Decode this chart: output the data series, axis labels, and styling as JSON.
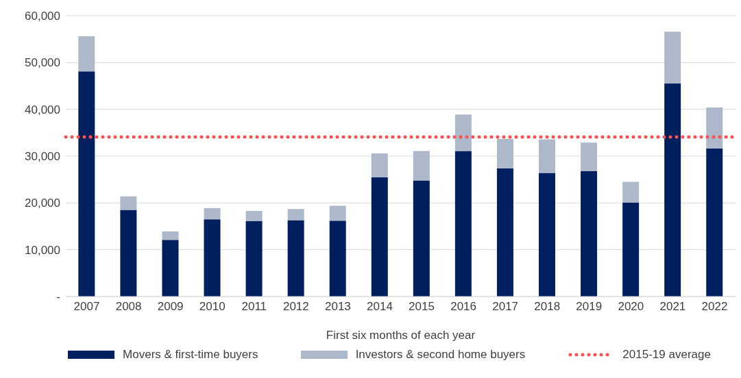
{
  "chart_data": {
    "type": "bar",
    "stacked": true,
    "xlabel": "First six months of each year",
    "categories": [
      "2007",
      "2008",
      "2009",
      "2010",
      "2011",
      "2012",
      "2013",
      "2014",
      "2015",
      "2016",
      "2017",
      "2018",
      "2019",
      "2020",
      "2021",
      "2022"
    ],
    "series": [
      {
        "name": "Movers & first-time buyers",
        "color": "#001f5f",
        "values": [
          48100,
          18500,
          12100,
          16500,
          16100,
          16300,
          16200,
          25500,
          24800,
          31100,
          27400,
          26400,
          26800,
          20100,
          45500,
          31600
        ]
      },
      {
        "name": "Investors & second home buyers",
        "color": "#adb9ca",
        "values": [
          7500,
          2900,
          1800,
          2400,
          2200,
          2400,
          3200,
          5100,
          6300,
          7800,
          6300,
          7200,
          6100,
          4400,
          11100,
          8800
        ]
      }
    ],
    "ylim": [
      0,
      60000
    ],
    "yticks": [
      {
        "value": 0,
        "label": "-"
      },
      {
        "value": 10000,
        "label": "10,000"
      },
      {
        "value": 20000,
        "label": "20,000"
      },
      {
        "value": 30000,
        "label": "30,000"
      },
      {
        "value": 40000,
        "label": "40,000"
      },
      {
        "value": 50000,
        "label": "50,000"
      },
      {
        "value": 60000,
        "label": "60,000"
      }
    ],
    "ref_lines": [
      {
        "axis": "y",
        "value": 34100,
        "label": "2015-19 average",
        "color": "#ff5050",
        "line_style": "dotted"
      }
    ],
    "grid": "y",
    "legend": "bottom"
  }
}
